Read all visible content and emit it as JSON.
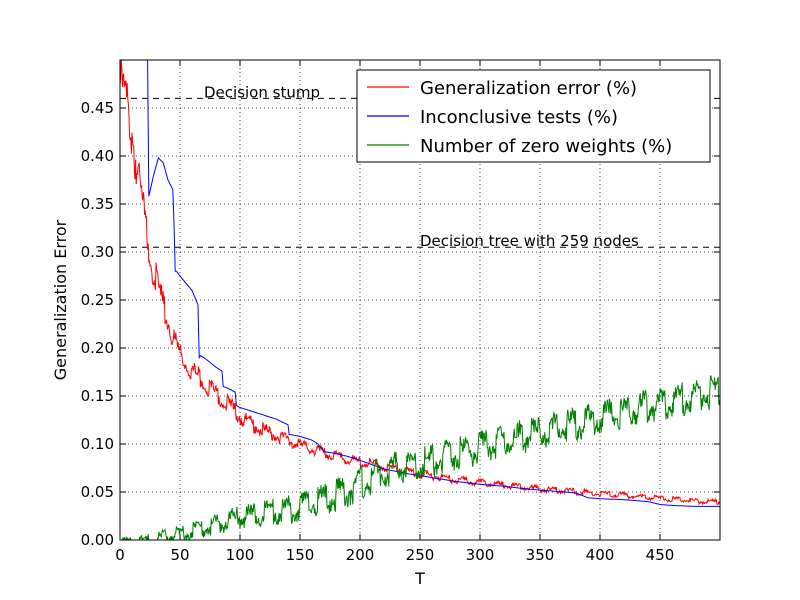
{
  "chart_data": {
    "type": "line",
    "title": "",
    "xlabel": "T",
    "ylabel": "Generalization Error",
    "xlim": [
      0,
      500
    ],
    "ylim": [
      0,
      0.5
    ],
    "xticks": [
      0,
      50,
      100,
      150,
      200,
      250,
      300,
      350,
      400,
      450
    ],
    "yticks": [
      0.0,
      0.05,
      0.1,
      0.15,
      0.2,
      0.25,
      0.3,
      0.35,
      0.4,
      0.45
    ],
    "xtick_labels": [
      "0",
      "50",
      "100",
      "150",
      "200",
      "250",
      "300",
      "350",
      "400",
      "450"
    ],
    "ytick_labels": [
      "0.00",
      "0.05",
      "0.10",
      "0.15",
      "0.20",
      "0.25",
      "0.30",
      "0.35",
      "0.40",
      "0.45"
    ],
    "grid": true,
    "legend_position": "top-right",
    "reference_lines": [
      {
        "label": "Decision stump",
        "y": 0.46,
        "label_x": 70
      },
      {
        "label": "Decision tree with 259 nodes",
        "y": 0.305,
        "label_x": 250
      }
    ],
    "series": [
      {
        "name": "Generalization error (%)",
        "color": "#ff0000",
        "x": [
          0,
          5,
          10,
          15,
          20,
          25,
          30,
          35,
          40,
          45,
          50,
          55,
          60,
          70,
          80,
          90,
          100,
          110,
          120,
          130,
          140,
          150,
          160,
          170,
          180,
          190,
          200,
          220,
          240,
          260,
          280,
          300,
          320,
          340,
          360,
          380,
          400,
          420,
          440,
          460,
          480,
          500
        ],
        "values": [
          0.49,
          0.48,
          0.44,
          0.39,
          0.35,
          0.31,
          0.28,
          0.255,
          0.235,
          0.215,
          0.2,
          0.19,
          0.183,
          0.17,
          0.158,
          0.147,
          0.133,
          0.125,
          0.118,
          0.112,
          0.108,
          0.102,
          0.098,
          0.094,
          0.09,
          0.087,
          0.084,
          0.079,
          0.074,
          0.069,
          0.065,
          0.062,
          0.059,
          0.056,
          0.054,
          0.052,
          0.05,
          0.048,
          0.046,
          0.044,
          0.042,
          0.041
        ],
        "noise": 0.02
      },
      {
        "name": "Inconclusive tests (%)",
        "color": "#0000ff",
        "x": [
          0,
          23,
          24,
          28,
          32,
          36,
          40,
          44,
          45,
          46,
          47,
          50,
          60,
          65,
          66,
          67,
          70,
          80,
          85,
          86,
          90,
          96,
          97,
          100,
          110,
          120,
          130,
          140,
          141,
          150,
          160,
          165,
          170,
          180,
          190,
          200,
          220,
          240,
          260,
          280,
          300,
          320,
          340,
          360,
          380,
          390,
          400,
          420,
          440,
          450,
          460,
          480,
          500
        ],
        "values": [
          0.5,
          0.5,
          0.358,
          0.38,
          0.398,
          0.393,
          0.375,
          0.365,
          0.33,
          0.28,
          0.28,
          0.275,
          0.26,
          0.245,
          0.19,
          0.192,
          0.19,
          0.18,
          0.176,
          0.16,
          0.158,
          0.154,
          0.14,
          0.138,
          0.134,
          0.13,
          0.126,
          0.12,
          0.11,
          0.108,
          0.104,
          0.1,
          0.092,
          0.09,
          0.087,
          0.083,
          0.074,
          0.069,
          0.065,
          0.061,
          0.058,
          0.056,
          0.053,
          0.051,
          0.049,
          0.044,
          0.043,
          0.042,
          0.04,
          0.037,
          0.036,
          0.035,
          0.035
        ],
        "noise": 0.0
      },
      {
        "name": "Number of zero weights (%)",
        "color": "#008000",
        "x": [
          0,
          10,
          20,
          30,
          40,
          50,
          60,
          70,
          80,
          90,
          100,
          110,
          120,
          130,
          140,
          150,
          160,
          170,
          180,
          190,
          200,
          210,
          220,
          230,
          240,
          250,
          260,
          270,
          280,
          290,
          300,
          310,
          320,
          330,
          340,
          350,
          360,
          370,
          380,
          390,
          400,
          410,
          420,
          430,
          440,
          450,
          460,
          470,
          480,
          490,
          500
        ],
        "values": [
          0.0,
          0.0,
          0.002,
          0.005,
          0.008,
          0.01,
          0.014,
          0.018,
          0.022,
          0.026,
          0.03,
          0.032,
          0.035,
          0.037,
          0.039,
          0.042,
          0.046,
          0.051,
          0.055,
          0.061,
          0.068,
          0.074,
          0.079,
          0.084,
          0.086,
          0.088,
          0.092,
          0.095,
          0.098,
          0.102,
          0.105,
          0.108,
          0.112,
          0.115,
          0.118,
          0.121,
          0.124,
          0.127,
          0.13,
          0.133,
          0.137,
          0.14,
          0.143,
          0.146,
          0.148,
          0.15,
          0.153,
          0.156,
          0.16,
          0.162,
          0.165
        ],
        "noise": 0.018
      }
    ]
  }
}
